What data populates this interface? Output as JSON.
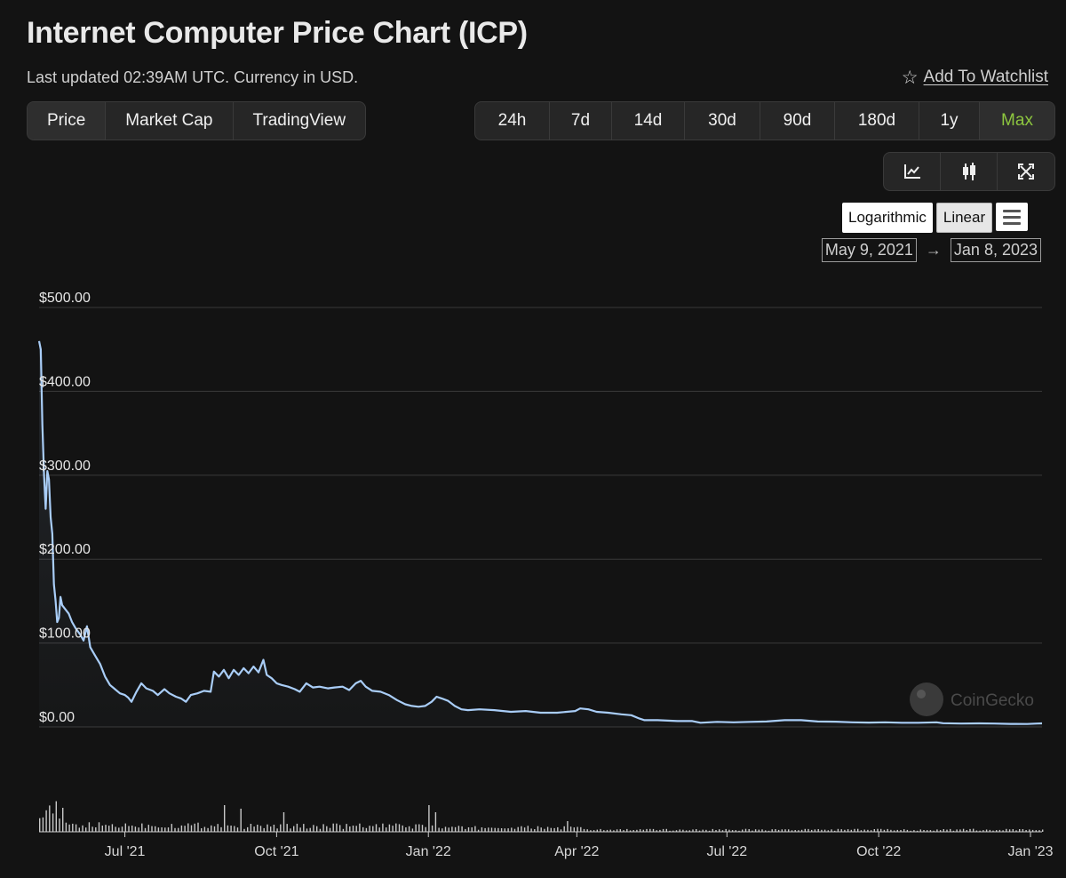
{
  "header": {
    "title": "Internet Computer Price Chart (ICP)",
    "updated": "Last updated 02:39AM UTC. Currency in USD.",
    "watchlist_label": "Add To Watchlist",
    "watchlist_icon": "star-outline-icon"
  },
  "type_tabs": [
    {
      "label": "Price",
      "active": true
    },
    {
      "label": "Market Cap",
      "active": false
    },
    {
      "label": "TradingView",
      "active": false
    }
  ],
  "range_tabs": [
    {
      "label": "24h",
      "active": false
    },
    {
      "label": "7d",
      "active": false
    },
    {
      "label": "14d",
      "active": false
    },
    {
      "label": "30d",
      "active": false
    },
    {
      "label": "90d",
      "active": false
    },
    {
      "label": "180d",
      "active": false
    },
    {
      "label": "1y",
      "active": false
    },
    {
      "label": "Max",
      "active": true
    }
  ],
  "view_tabs": [
    {
      "icon": "line-chart-icon"
    },
    {
      "icon": "candlestick-icon"
    },
    {
      "icon": "fullscreen-icon"
    }
  ],
  "scale": {
    "logarithmic": "Logarithmic",
    "linear": "Linear",
    "active": "linear",
    "menu_icon": "hamburger-menu-icon"
  },
  "date_range": {
    "from": "May 9, 2021",
    "arrow": "→",
    "to": "Jan 8, 2023"
  },
  "watermark": "CoinGecko",
  "colors": {
    "line": "#a9cdf7",
    "active_range": "#8dc63f",
    "volume": "#c8c8c8",
    "background": "#131313"
  },
  "chart_data": {
    "type": "line",
    "title": "",
    "xlabel": "",
    "ylabel": "",
    "x_range": [
      "2021-05-10",
      "2023-01-08"
    ],
    "ylim": [
      0,
      500
    ],
    "y_ticks": [
      0,
      100,
      200,
      300,
      400,
      500
    ],
    "y_tick_labels": [
      "$0.00",
      "$100.00",
      "$200.00",
      "$300.00",
      "$400.00",
      "$500.00"
    ],
    "x_ticks": [
      "2021-07-01",
      "2021-10-01",
      "2022-01-01",
      "2022-04-01",
      "2022-07-01",
      "2022-10-01",
      "2023-01-01"
    ],
    "x_tick_labels": [
      "Jul '21",
      "Oct '21",
      "Jan '22",
      "Apr '22",
      "Jul '22",
      "Oct '22",
      "Jan '23"
    ],
    "grid": true,
    "series": [
      {
        "name": "",
        "points": [
          [
            "2021-05-10",
            460
          ],
          [
            "2021-05-11",
            450
          ],
          [
            "2021-05-12",
            360
          ],
          [
            "2021-05-13",
            300
          ],
          [
            "2021-05-14",
            260
          ],
          [
            "2021-05-15",
            305
          ],
          [
            "2021-05-16",
            295
          ],
          [
            "2021-05-17",
            250
          ],
          [
            "2021-05-18",
            230
          ],
          [
            "2021-05-19",
            170
          ],
          [
            "2021-05-20",
            150
          ],
          [
            "2021-05-21",
            125
          ],
          [
            "2021-05-22",
            130
          ],
          [
            "2021-05-23",
            155
          ],
          [
            "2021-05-24",
            145
          ],
          [
            "2021-05-26",
            140
          ],
          [
            "2021-05-28",
            135
          ],
          [
            "2021-05-30",
            125
          ],
          [
            "2021-06-01",
            118
          ],
          [
            "2021-06-04",
            110
          ],
          [
            "2021-06-06",
            103
          ],
          [
            "2021-06-08",
            120
          ],
          [
            "2021-06-10",
            95
          ],
          [
            "2021-06-13",
            85
          ],
          [
            "2021-06-16",
            75
          ],
          [
            "2021-06-19",
            60
          ],
          [
            "2021-06-22",
            50
          ],
          [
            "2021-06-25",
            45
          ],
          [
            "2021-06-28",
            40
          ],
          [
            "2021-07-01",
            38
          ],
          [
            "2021-07-03",
            35
          ],
          [
            "2021-07-05",
            30
          ],
          [
            "2021-07-08",
            42
          ],
          [
            "2021-07-11",
            52
          ],
          [
            "2021-07-14",
            46
          ],
          [
            "2021-07-18",
            43
          ],
          [
            "2021-07-21",
            38
          ],
          [
            "2021-07-25",
            45
          ],
          [
            "2021-07-28",
            40
          ],
          [
            "2021-08-01",
            36
          ],
          [
            "2021-08-04",
            34
          ],
          [
            "2021-08-07",
            30
          ],
          [
            "2021-08-10",
            38
          ],
          [
            "2021-08-14",
            40
          ],
          [
            "2021-08-18",
            43
          ],
          [
            "2021-08-22",
            42
          ],
          [
            "2021-08-24",
            66
          ],
          [
            "2021-08-27",
            60
          ],
          [
            "2021-08-30",
            68
          ],
          [
            "2021-09-02",
            58
          ],
          [
            "2021-09-05",
            68
          ],
          [
            "2021-09-08",
            62
          ],
          [
            "2021-09-11",
            70
          ],
          [
            "2021-09-14",
            64
          ],
          [
            "2021-09-17",
            72
          ],
          [
            "2021-09-20",
            65
          ],
          [
            "2021-09-23",
            80
          ],
          [
            "2021-09-25",
            62
          ],
          [
            "2021-09-28",
            58
          ],
          [
            "2021-10-01",
            52
          ],
          [
            "2021-10-04",
            50
          ],
          [
            "2021-10-08",
            48
          ],
          [
            "2021-10-12",
            45
          ],
          [
            "2021-10-15",
            42
          ],
          [
            "2021-10-19",
            52
          ],
          [
            "2021-10-23",
            47
          ],
          [
            "2021-10-27",
            48
          ],
          [
            "2021-11-01",
            46
          ],
          [
            "2021-11-05",
            47
          ],
          [
            "2021-11-10",
            48
          ],
          [
            "2021-11-14",
            44
          ],
          [
            "2021-11-18",
            52
          ],
          [
            "2021-11-21",
            55
          ],
          [
            "2021-11-24",
            48
          ],
          [
            "2021-11-28",
            43
          ],
          [
            "2021-12-03",
            42
          ],
          [
            "2021-12-08",
            38
          ],
          [
            "2021-12-13",
            32
          ],
          [
            "2021-12-18",
            27
          ],
          [
            "2021-12-22",
            25
          ],
          [
            "2021-12-26",
            24
          ],
          [
            "2021-12-30",
            25
          ],
          [
            "2022-01-03",
            30
          ],
          [
            "2022-01-06",
            36
          ],
          [
            "2022-01-09",
            34
          ],
          [
            "2022-01-13",
            31
          ],
          [
            "2022-01-17",
            25
          ],
          [
            "2022-01-21",
            21
          ],
          [
            "2022-01-25",
            20
          ],
          [
            "2022-02-01",
            21
          ],
          [
            "2022-02-10",
            20
          ],
          [
            "2022-02-20",
            18
          ],
          [
            "2022-03-01",
            19
          ],
          [
            "2022-03-10",
            17
          ],
          [
            "2022-03-20",
            17
          ],
          [
            "2022-03-31",
            19
          ],
          [
            "2022-04-03",
            22
          ],
          [
            "2022-04-08",
            21
          ],
          [
            "2022-04-13",
            18
          ],
          [
            "2022-04-20",
            17
          ],
          [
            "2022-04-28",
            15
          ],
          [
            "2022-05-04",
            14
          ],
          [
            "2022-05-09",
            10
          ],
          [
            "2022-05-12",
            8
          ],
          [
            "2022-05-20",
            8
          ],
          [
            "2022-06-01",
            7
          ],
          [
            "2022-06-10",
            7
          ],
          [
            "2022-06-15",
            5
          ],
          [
            "2022-06-25",
            6
          ],
          [
            "2022-07-05",
            5.5
          ],
          [
            "2022-07-15",
            6
          ],
          [
            "2022-07-25",
            6.5
          ],
          [
            "2022-08-05",
            8
          ],
          [
            "2022-08-15",
            8
          ],
          [
            "2022-08-25",
            6.5
          ],
          [
            "2022-09-05",
            6.2
          ],
          [
            "2022-09-15",
            5.5
          ],
          [
            "2022-09-25",
            5.2
          ],
          [
            "2022-10-05",
            5.5
          ],
          [
            "2022-10-15",
            5
          ],
          [
            "2022-10-25",
            5
          ],
          [
            "2022-11-05",
            5.5
          ],
          [
            "2022-11-09",
            4.5
          ],
          [
            "2022-11-20",
            4
          ],
          [
            "2022-12-01",
            4.2
          ],
          [
            "2022-12-10",
            4
          ],
          [
            "2022-12-20",
            3.6
          ],
          [
            "2022-12-30",
            3.5
          ],
          [
            "2023-01-05",
            4
          ],
          [
            "2023-01-08",
            4.2
          ]
        ]
      }
    ]
  }
}
